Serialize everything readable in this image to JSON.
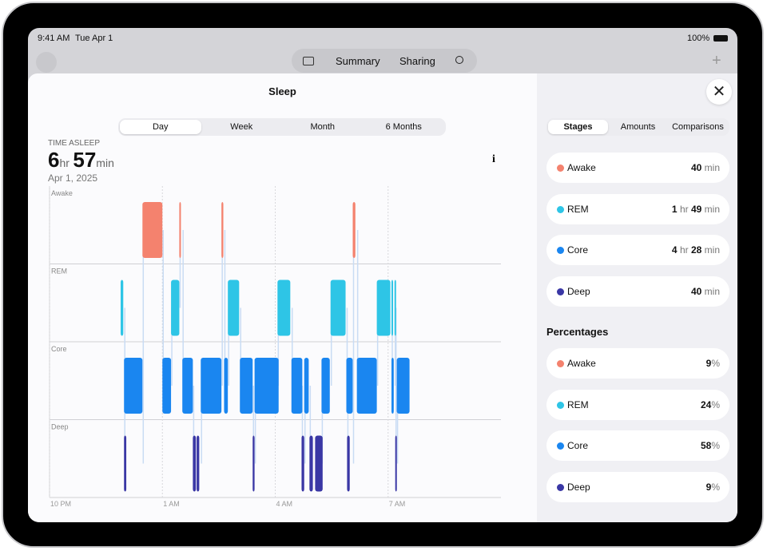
{
  "status_bar": {
    "time": "9:41 AM",
    "date": "Tue Apr 1",
    "battery": "100%"
  },
  "nav": {
    "tabs": [
      "Summary",
      "Sharing"
    ]
  },
  "sheet": {
    "title": "Sleep",
    "periods": [
      "Day",
      "Week",
      "Month",
      "6 Months"
    ],
    "summary": {
      "label": "TIME ASLEEP",
      "hours": 6,
      "hours_unit": "hr",
      "minutes": 57,
      "minutes_unit": "min",
      "date": "Apr 1, 2025"
    }
  },
  "chart_data": {
    "type": "sleep-stages",
    "xlim": [
      0,
      12
    ],
    "xticks": [
      {
        "value": 0,
        "label": "10 PM"
      },
      {
        "value": 3,
        "label": "1 AM"
      },
      {
        "value": 6,
        "label": "4 AM"
      },
      {
        "value": 9,
        "label": "7 AM"
      }
    ],
    "series": [
      {
        "name": "Awake",
        "color": "#f4826e",
        "start": [
          2.47,
          3.45,
          4.57,
          8.06
        ],
        "end": [
          3.0,
          3.49,
          4.62,
          8.13
        ]
      },
      {
        "name": "REM",
        "color": "#2ec5e6",
        "start": [
          1.89,
          3.23,
          4.74,
          6.06,
          7.47,
          8.7,
          9.09,
          9.17
        ],
        "end": [
          1.96,
          3.45,
          5.04,
          6.4,
          7.87,
          9.06,
          9.13,
          9.21
        ]
      },
      {
        "name": "Core",
        "color": "#1a86f0",
        "start": [
          1.98,
          3.0,
          3.53,
          4.02,
          4.64,
          5.06,
          5.45,
          6.43,
          6.77,
          7.23,
          7.89,
          8.17,
          9.09,
          9.23
        ],
        "end": [
          2.47,
          3.23,
          3.81,
          4.57,
          4.74,
          5.4,
          6.09,
          6.72,
          6.89,
          7.45,
          8.06,
          8.7,
          9.15,
          9.57
        ]
      },
      {
        "name": "Deep",
        "color": "#3a37a5",
        "start": [
          1.98,
          3.81,
          3.91,
          5.4,
          6.7,
          6.91,
          7.06,
          7.91,
          9.19
        ],
        "end": [
          2.04,
          3.89,
          3.98,
          5.45,
          6.77,
          7.0,
          7.26,
          7.98,
          9.23
        ]
      }
    ]
  },
  "panel": {
    "tabs": [
      "Stages",
      "Amounts",
      "Comparisons"
    ],
    "amounts": [
      {
        "stage": "Awake",
        "color": "#f4826e",
        "parts": [
          {
            "n": 40,
            "u": "min"
          }
        ]
      },
      {
        "stage": "REM",
        "color": "#2ec5e6",
        "parts": [
          {
            "n": 1,
            "u": "hr"
          },
          {
            "n": 49,
            "u": "min"
          }
        ]
      },
      {
        "stage": "Core",
        "color": "#1a86f0",
        "parts": [
          {
            "n": 4,
            "u": "hr"
          },
          {
            "n": 28,
            "u": "min"
          }
        ]
      },
      {
        "stage": "Deep",
        "color": "#3a37a5",
        "parts": [
          {
            "n": 40,
            "u": "min"
          }
        ]
      }
    ],
    "percentages_title": "Percentages",
    "percentages": [
      {
        "stage": "Awake",
        "color": "#f4826e",
        "value": 9,
        "unit": "%"
      },
      {
        "stage": "REM",
        "color": "#2ec5e6",
        "value": 24,
        "unit": "%"
      },
      {
        "stage": "Core",
        "color": "#1a86f0",
        "value": 58,
        "unit": "%"
      },
      {
        "stage": "Deep",
        "color": "#3a37a5",
        "value": 9,
        "unit": "%"
      }
    ]
  }
}
